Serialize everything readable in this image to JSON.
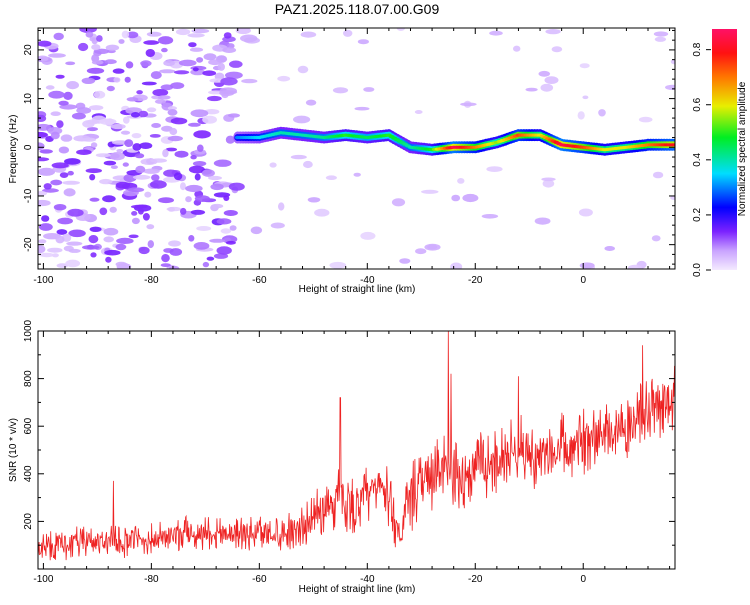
{
  "title": "PAZ1.2025.118.07.00.G09",
  "colors": {
    "snr_line": "#ee2222",
    "axis": "#000000",
    "background": "#ffffff"
  },
  "chart_data": [
    {
      "type": "heatmap",
      "title": "PAZ1.2025.118.07.00.G09",
      "xlabel": "Height of straight line (km)",
      "ylabel": "Frequency (Hz)",
      "xlim": [
        -101,
        17
      ],
      "ylim": [
        -25,
        24.5
      ],
      "x_ticks": [
        -100,
        -80,
        -60,
        -40,
        -20,
        0
      ],
      "y_ticks": [
        -20,
        -10,
        0,
        10,
        20
      ],
      "grid": false,
      "colorbar": {
        "label": "Normalized spectral amplitude",
        "range": [
          0.0,
          0.875
        ],
        "ticks": [
          0.0,
          0.2,
          0.4,
          0.6,
          0.8
        ],
        "colormap": "rainbow (transparent → violet → blue → cyan → green → yellow → orange → red → magenta)",
        "placement": "right"
      },
      "ridge": {
        "description": "Strong spectral ridge near 0–3 Hz from about -64 km to the top of the profile",
        "x": [
          -64,
          -60,
          -56,
          -52,
          -48,
          -44,
          -40,
          -36,
          -32,
          -28,
          -24,
          -20,
          -16,
          -12,
          -8,
          -4,
          0,
          4,
          8,
          12,
          16
        ],
        "frequency": [
          2.0,
          2.0,
          3.0,
          2.5,
          2.0,
          2.5,
          2.0,
          2.5,
          0.0,
          -0.5,
          0.0,
          0.0,
          1.0,
          2.5,
          2.5,
          0.5,
          0.0,
          -0.5,
          0.0,
          0.5,
          0.5
        ],
        "amplitude": [
          0.3,
          0.35,
          0.4,
          0.4,
          0.42,
          0.5,
          0.45,
          0.5,
          0.4,
          0.5,
          0.85,
          0.7,
          0.55,
          0.75,
          0.6,
          0.85,
          0.75,
          0.6,
          0.6,
          0.7,
          0.8
        ]
      },
      "noise": {
        "description": "Scattered low-amplitude violet patches across all frequencies, strong below -65 km",
        "x_range": [
          -101,
          -64
        ],
        "amplitude_range": [
          0.02,
          0.12
        ]
      }
    },
    {
      "type": "line",
      "xlabel": "Height of straight line (km)",
      "ylabel": "SNR (10 * v/v)",
      "xlim": [
        -101,
        17
      ],
      "ylim": [
        0,
        1000
      ],
      "x_ticks": [
        -100,
        -80,
        -60,
        -40,
        -20,
        0
      ],
      "y_ticks": [
        200,
        400,
        600,
        800,
        1000
      ],
      "grid": false,
      "series": [
        {
          "x": [
            -101,
            -96,
            -91,
            -86,
            -81,
            -76,
            -71,
            -66,
            -61,
            -56,
            -51,
            -48,
            -45,
            -42,
            -40,
            -37,
            -34,
            -32,
            -30,
            -28,
            -26,
            -24,
            -22,
            -20,
            -18,
            -16,
            -14,
            -12,
            -10,
            -8,
            -6,
            -4,
            -2,
            0,
            2,
            4,
            6,
            8,
            10,
            12,
            14,
            16,
            17
          ],
          "y": [
            90,
            105,
            115,
            115,
            120,
            140,
            155,
            155,
            150,
            155,
            190,
            260,
            300,
            260,
            310,
            350,
            150,
            300,
            350,
            380,
            420,
            390,
            380,
            440,
            430,
            450,
            480,
            520,
            480,
            460,
            470,
            520,
            480,
            530,
            590,
            560,
            600,
            610,
            640,
            660,
            680,
            720,
            740
          ],
          "spread": [
            60,
            70,
            70,
            70,
            70,
            75,
            80,
            80,
            80,
            85,
            95,
            120,
            150,
            130,
            130,
            130,
            110,
            150,
            150,
            150,
            150,
            150,
            140,
            140,
            140,
            140,
            140,
            140,
            140,
            140,
            140,
            140,
            140,
            150,
            150,
            150,
            150,
            150,
            150,
            150,
            150,
            150,
            150
          ],
          "spikes": [
            [
              -87,
              370
            ],
            [
              -45,
              720
            ],
            [
              -25,
              1000
            ],
            [
              -24.5,
              820
            ],
            [
              -12,
              810
            ],
            [
              11,
              940
            ]
          ]
        }
      ]
    }
  ]
}
